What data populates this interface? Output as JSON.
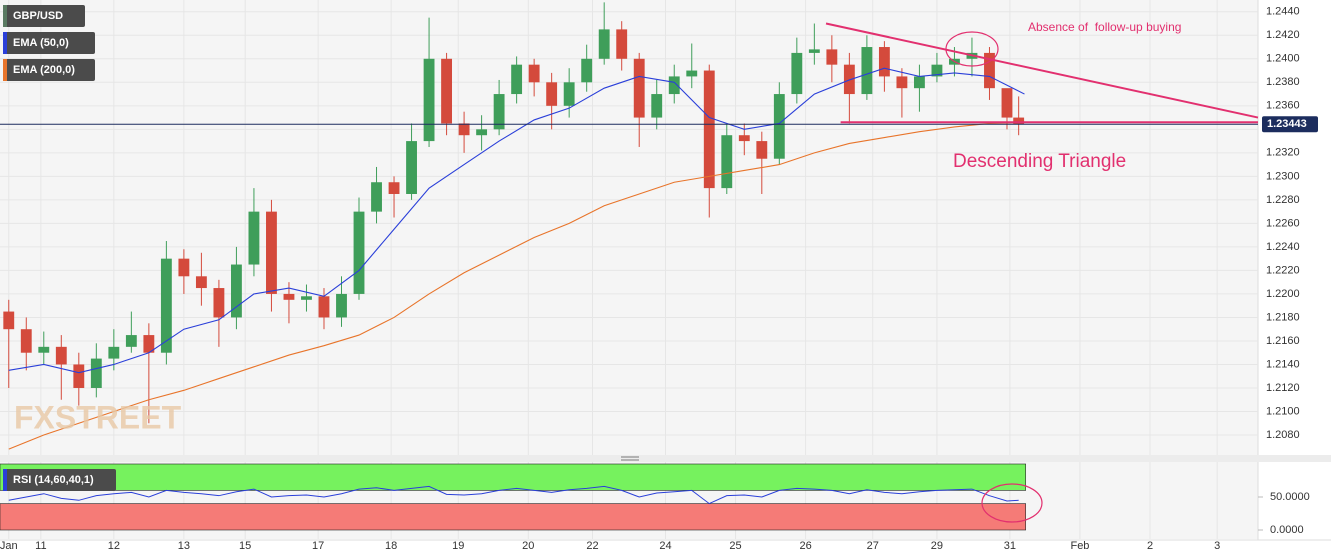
{
  "chart_data": [
    {
      "type": "candlestick",
      "name": "GBP/USD",
      "x": [
        0,
        6,
        12,
        18,
        24,
        30,
        36,
        42,
        48,
        54,
        60,
        66,
        72,
        78,
        84,
        90,
        96,
        102,
        108,
        114,
        120,
        126,
        132,
        138,
        144,
        150,
        156,
        162,
        168,
        174,
        180,
        186,
        192,
        198,
        204,
        210,
        216,
        222,
        228,
        234,
        240,
        246,
        252,
        258,
        264,
        270,
        276,
        282,
        288,
        294,
        300,
        306,
        312,
        318,
        324,
        330,
        336,
        342,
        346
      ],
      "open": [
        1.2185,
        1.217,
        1.215,
        1.2155,
        1.214,
        1.212,
        1.2145,
        1.2155,
        1.2165,
        1.215,
        1.223,
        1.2215,
        1.2205,
        1.218,
        1.2225,
        1.227,
        1.22,
        1.2195,
        1.2198,
        1.218,
        1.22,
        1.227,
        1.2295,
        1.2285,
        1.233,
        1.24,
        1.2345,
        1.2335,
        1.234,
        1.237,
        1.2395,
        1.238,
        1.236,
        1.238,
        1.24,
        1.2425,
        1.24,
        1.235,
        1.237,
        1.2385,
        1.239,
        1.229,
        1.2335,
        1.233,
        1.2315,
        1.237,
        1.2405,
        1.2408,
        1.2395,
        1.237,
        1.241,
        1.2385,
        1.2375,
        1.2385,
        1.2395,
        1.24,
        1.2405,
        1.2375,
        1.235
      ],
      "high": [
        1.2195,
        1.218,
        1.2168,
        1.2165,
        1.215,
        1.2158,
        1.217,
        1.2185,
        1.2175,
        1.2245,
        1.2238,
        1.2235,
        1.2212,
        1.224,
        1.229,
        1.228,
        1.221,
        1.2208,
        1.2205,
        1.2215,
        1.2282,
        1.2308,
        1.23,
        1.2345,
        1.2435,
        1.2405,
        1.2355,
        1.2352,
        1.2382,
        1.2402,
        1.24,
        1.2388,
        1.2392,
        1.2412,
        1.2448,
        1.2432,
        1.2405,
        1.2382,
        1.2395,
        1.2413,
        1.2395,
        1.2345,
        1.2345,
        1.2338,
        1.238,
        1.2418,
        1.243,
        1.242,
        1.2405,
        1.242,
        1.2415,
        1.2392,
        1.2395,
        1.2405,
        1.241,
        1.2418,
        1.241,
        1.2372,
        1.2368
      ],
      "low": [
        1.212,
        1.2135,
        1.214,
        1.211,
        1.2105,
        1.2112,
        1.2135,
        1.215,
        1.209,
        1.214,
        1.22,
        1.219,
        1.2155,
        1.217,
        1.2215,
        1.2185,
        1.2175,
        1.2185,
        1.217,
        1.2172,
        1.2195,
        1.226,
        1.2265,
        1.228,
        1.2325,
        1.2335,
        1.232,
        1.2322,
        1.2335,
        1.2362,
        1.2368,
        1.234,
        1.235,
        1.2372,
        1.2395,
        1.239,
        1.2325,
        1.234,
        1.2362,
        1.2375,
        1.2265,
        1.2285,
        1.2318,
        1.2285,
        1.231,
        1.2362,
        1.2395,
        1.238,
        1.2345,
        1.2365,
        1.2372,
        1.235,
        1.2355,
        1.238,
        1.2385,
        1.2385,
        1.2365,
        1.234,
        1.2335
      ],
      "close": [
        1.217,
        1.215,
        1.2155,
        1.214,
        1.212,
        1.2145,
        1.2155,
        1.2165,
        1.215,
        1.223,
        1.2215,
        1.2205,
        1.218,
        1.2225,
        1.227,
        1.22,
        1.2195,
        1.2198,
        1.218,
        1.22,
        1.227,
        1.2295,
        1.2285,
        1.233,
        1.24,
        1.2345,
        1.2335,
        1.234,
        1.237,
        1.2395,
        1.238,
        1.236,
        1.238,
        1.24,
        1.2425,
        1.24,
        1.235,
        1.237,
        1.2385,
        1.239,
        1.229,
        1.2335,
        1.233,
        1.2315,
        1.237,
        1.2405,
        1.2408,
        1.2395,
        1.237,
        1.241,
        1.2385,
        1.2375,
        1.2385,
        1.2395,
        1.24,
        1.2405,
        1.2375,
        1.235,
        1.23443
      ],
      "up_color": "#3f9e5a",
      "down_color": "#d44a3c",
      "swatch_color": "#5a7a62",
      "overlays": [
        {
          "name": "EMA (50,0)",
          "color": "#2a3fd9",
          "x": [
            0,
            12,
            24,
            36,
            48,
            60,
            72,
            84,
            96,
            108,
            120,
            132,
            144,
            156,
            168,
            180,
            192,
            204,
            216,
            228,
            240,
            252,
            264,
            276,
            288,
            300,
            312,
            324,
            336,
            348
          ],
          "values": [
            1.2135,
            1.214,
            1.2133,
            1.214,
            1.215,
            1.217,
            1.2178,
            1.22,
            1.2205,
            1.2198,
            1.222,
            1.2255,
            1.229,
            1.231,
            1.233,
            1.2348,
            1.2358,
            1.2375,
            1.2385,
            1.238,
            1.235,
            1.234,
            1.2345,
            1.237,
            1.2382,
            1.2392,
            1.2385,
            1.2388,
            1.2385,
            1.237
          ]
        },
        {
          "name": "EMA (200,0)",
          "color": "#e8742a",
          "x": [
            0,
            12,
            24,
            36,
            48,
            60,
            72,
            84,
            96,
            108,
            120,
            132,
            144,
            156,
            168,
            180,
            192,
            204,
            216,
            228,
            240,
            252,
            264,
            276,
            288,
            300,
            312,
            324,
            336,
            348
          ],
          "values": [
            1.2068,
            1.208,
            1.209,
            1.21,
            1.211,
            1.2118,
            1.2128,
            1.2138,
            1.2148,
            1.2156,
            1.2165,
            1.218,
            1.22,
            1.2218,
            1.2233,
            1.2248,
            1.226,
            1.2275,
            1.2285,
            1.2295,
            1.23,
            1.2305,
            1.231,
            1.232,
            1.2328,
            1.2333,
            1.2338,
            1.2342,
            1.2345,
            1.2346
          ]
        }
      ],
      "trendlines": [
        {
          "color": "#e2306f",
          "x": [
            280,
            428
          ],
          "values": [
            1.243,
            1.235
          ]
        },
        {
          "color": "#e2306f",
          "x": [
            285,
            428
          ],
          "values": [
            1.2346,
            1.2346
          ]
        }
      ],
      "last_price": 1.23443,
      "annotations": [
        "Absence of  follow-up buying",
        "Descending Triangle"
      ],
      "watermark": "FXSTREET",
      "xlim": [
        -3,
        428
      ],
      "xticks": [
        {
          "value": 0,
          "label": "Jan"
        },
        {
          "value": 11,
          "label": "11"
        },
        {
          "value": 36,
          "label": "12"
        },
        {
          "value": 60,
          "label": "13"
        },
        {
          "value": 81,
          "label": "15"
        },
        {
          "value": 106,
          "label": "17"
        },
        {
          "value": 131,
          "label": "18"
        },
        {
          "value": 154,
          "label": "19"
        },
        {
          "value": 178,
          "label": "20"
        },
        {
          "value": 200,
          "label": "22"
        },
        {
          "value": 225,
          "label": "24"
        },
        {
          "value": 249,
          "label": "25"
        },
        {
          "value": 273,
          "label": "26"
        },
        {
          "value": 296,
          "label": "27"
        },
        {
          "value": 318,
          "label": "29"
        },
        {
          "value": 343,
          "label": "31"
        },
        {
          "value": 367,
          "label": "Feb"
        },
        {
          "value": 391,
          "label": "2"
        },
        {
          "value": 414,
          "label": "3"
        }
      ],
      "ylim": [
        1.2063,
        1.245
      ],
      "yticks": [
        {
          "value": 1.208,
          "label": "1.2080"
        },
        {
          "value": 1.21,
          "label": "1.2100"
        },
        {
          "value": 1.212,
          "label": "1.2120"
        },
        {
          "value": 1.214,
          "label": "1.2140"
        },
        {
          "value": 1.216,
          "label": "1.2160"
        },
        {
          "value": 1.218,
          "label": "1.2180"
        },
        {
          "value": 1.22,
          "label": "1.2200"
        },
        {
          "value": 1.222,
          "label": "1.2220"
        },
        {
          "value": 1.224,
          "label": "1.2240"
        },
        {
          "value": 1.226,
          "label": "1.2260"
        },
        {
          "value": 1.228,
          "label": "1.2280"
        },
        {
          "value": 1.23,
          "label": "1.2300"
        },
        {
          "value": 1.232,
          "label": "1.2320"
        },
        {
          "value": 1.234,
          "label": "1.2340"
        },
        {
          "value": 1.236,
          "label": "1.2360"
        },
        {
          "value": 1.238,
          "label": "1.2380"
        },
        {
          "value": 1.24,
          "label": "1.2400"
        },
        {
          "value": 1.242,
          "label": "1.2420"
        },
        {
          "value": 1.244,
          "label": "1.2440"
        }
      ],
      "grid": true
    },
    {
      "type": "line",
      "title": "RSI (14,60,40,1)",
      "color": "#2a3fd9",
      "x": [
        0,
        6,
        12,
        18,
        24,
        30,
        36,
        42,
        48,
        54,
        60,
        66,
        72,
        78,
        84,
        90,
        96,
        102,
        108,
        114,
        120,
        126,
        132,
        138,
        144,
        150,
        156,
        162,
        168,
        174,
        180,
        186,
        192,
        198,
        204,
        210,
        216,
        222,
        228,
        234,
        240,
        246,
        252,
        258,
        264,
        270,
        276,
        282,
        288,
        294,
        300,
        306,
        312,
        318,
        324,
        330,
        336,
        342,
        346
      ],
      "values": [
        45,
        50,
        55,
        48,
        45,
        52,
        55,
        57,
        50,
        60,
        57,
        55,
        52,
        58,
        62,
        50,
        52,
        53,
        50,
        55,
        62,
        64,
        60,
        63,
        66,
        54,
        53,
        55,
        60,
        63,
        60,
        57,
        61,
        63,
        66,
        60,
        50,
        56,
        58,
        60,
        40,
        52,
        53,
        50,
        60,
        63,
        62,
        60,
        55,
        61,
        57,
        55,
        58,
        60,
        61,
        62,
        52,
        44,
        45
      ],
      "bands": [
        {
          "from": 60,
          "to": 100,
          "color": "#76f25e"
        },
        {
          "from": 0,
          "to": 40,
          "color": "#f57b77"
        }
      ],
      "ylim": [
        0,
        100
      ],
      "yticks": [
        {
          "value": 50,
          "label": "50.0000"
        },
        {
          "value": 0,
          "label": "0.0000"
        }
      ]
    }
  ]
}
